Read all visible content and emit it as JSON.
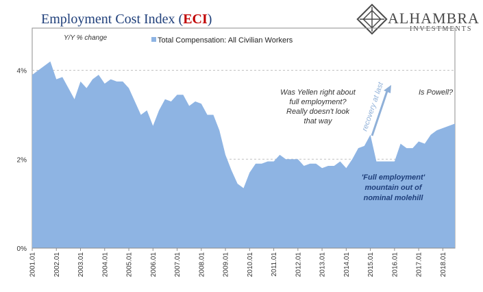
{
  "title": {
    "main": "Employment Cost Index (",
    "accent": "ECI",
    "close": ")"
  },
  "logo": {
    "name": "ALHAMBRA",
    "sub": "INVESTMENTS"
  },
  "colors": {
    "area": "#8eb4e3",
    "title": "#1f3f7a",
    "accent": "#c00000",
    "grid": "#bfbfbf"
  },
  "chart_data": {
    "type": "area",
    "ylabel": "Y/Y % change",
    "ylim": [
      0,
      4.95
    ],
    "yticks": [
      {
        "v": 0,
        "label": "0%"
      },
      {
        "v": 2,
        "label": "2%"
      },
      {
        "v": 4,
        "label": "4%"
      }
    ],
    "grid": "horizontal dashed",
    "legend": "top",
    "series": [
      {
        "name": "Total Compensation: All Civilian Workers",
        "start": "2001.Q1",
        "values": [
          3.9,
          4.0,
          4.1,
          4.2,
          3.8,
          3.85,
          3.6,
          3.35,
          3.75,
          3.6,
          3.8,
          3.9,
          3.7,
          3.8,
          3.75,
          3.75,
          3.6,
          3.3,
          3.0,
          3.1,
          2.75,
          3.1,
          3.35,
          3.3,
          3.45,
          3.45,
          3.2,
          3.3,
          3.25,
          3.0,
          3.0,
          2.65,
          2.1,
          1.75,
          1.45,
          1.35,
          1.7,
          1.9,
          1.9,
          1.95,
          1.95,
          2.1,
          2.0,
          2.0,
          2.0,
          1.85,
          1.9,
          1.9,
          1.8,
          1.85,
          1.85,
          1.95,
          1.8,
          2.0,
          2.25,
          2.3,
          2.55,
          1.95,
          1.95,
          1.95,
          1.95,
          2.35,
          2.25,
          2.25,
          2.4,
          2.35,
          2.55,
          2.65,
          2.7,
          2.75,
          2.8
        ]
      }
    ],
    "x_labels": [
      "2001.01",
      "2002.01",
      "2003.01",
      "2004.01",
      "2005.01",
      "2006.01",
      "2007.01",
      "2008.01",
      "2009.01",
      "2010.01",
      "2011.01",
      "2012.01",
      "2013.01",
      "2014.01",
      "2015.01",
      "2016.01",
      "2017.01",
      "2018.01"
    ]
  },
  "annotations": {
    "yellen": [
      "Was Yellen right about",
      "full employment?",
      "Really doesn't look",
      "that way"
    ],
    "powell": "Is Powell?",
    "recovery": "recovery at last",
    "mountain": [
      "'Full employment'",
      "mountain out of",
      "nominal molehill"
    ]
  }
}
